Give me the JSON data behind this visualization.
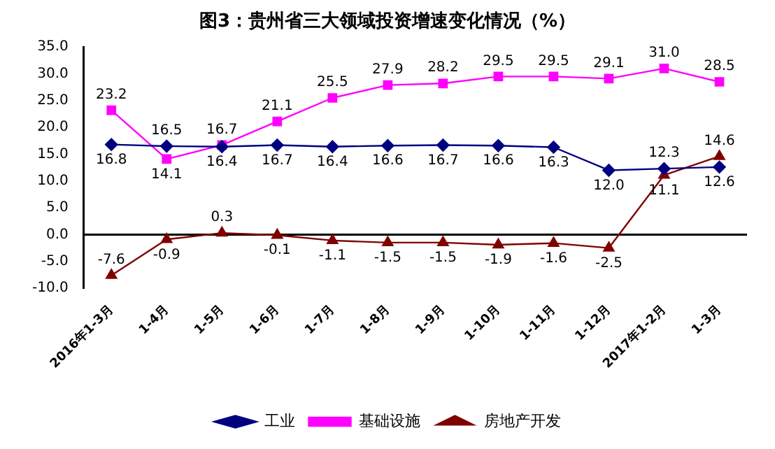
{
  "chart_data": {
    "type": "line",
    "title": "图3：贵州省三大领域投资增速变化情况（%）",
    "categories": [
      "2016年1-3月",
      "1-4月",
      "1-5月",
      "1-6月",
      "1-7月",
      "1-8月",
      "1-9月",
      "1-10月",
      "1-11月",
      "1-12月",
      "2017年1-2月",
      "1-3月"
    ],
    "series": [
      {
        "name": "工业",
        "color": "#000080",
        "marker": "diamond",
        "values": [
          16.8,
          16.5,
          16.4,
          16.7,
          16.4,
          16.6,
          16.7,
          16.6,
          16.3,
          12.0,
          12.3,
          12.6
        ],
        "value_labels": [
          "16.8",
          "16.5",
          "16.4",
          "16.7",
          "16.4",
          "16.6",
          "16.7",
          "16.6",
          "16.3",
          "12.0",
          "12.3",
          "12.6"
        ]
      },
      {
        "name": "基础设施",
        "color": "#ff00ff",
        "marker": "square",
        "values": [
          23.2,
          14.1,
          16.7,
          21.1,
          25.5,
          27.9,
          28.2,
          29.5,
          29.5,
          29.1,
          31.0,
          28.5
        ],
        "value_labels": [
          "23.2",
          "14.1",
          "16.7",
          "21.1",
          "25.5",
          "27.9",
          "28.2",
          "29.5",
          "29.5",
          "29.1",
          "31.0",
          "28.5"
        ]
      },
      {
        "name": "房地产开发",
        "color": "#800000",
        "marker": "triangle",
        "values": [
          -7.6,
          -0.9,
          0.3,
          -0.1,
          -1.1,
          -1.5,
          -1.5,
          -1.9,
          -1.6,
          -2.5,
          11.1,
          14.6
        ],
        "value_labels": [
          "-7.6",
          "-0.9",
          "0.3",
          "-0.1",
          "-1.1",
          "-1.5",
          "-1.5",
          "-1.9",
          "-1.6",
          "-2.5",
          "11.1",
          "14.6"
        ]
      }
    ],
    "ylim": [
      -10,
      35
    ],
    "yticks": [
      {
        "value": -10,
        "label": "-10.0"
      },
      {
        "value": -5,
        "label": "-5.0"
      },
      {
        "value": 0,
        "label": "0.0"
      },
      {
        "value": 5,
        "label": "5.0"
      },
      {
        "value": 10,
        "label": "10.0"
      },
      {
        "value": 15,
        "label": "15.0"
      },
      {
        "value": 20,
        "label": "20.0"
      },
      {
        "value": 25,
        "label": "25.0"
      },
      {
        "value": 30,
        "label": "30.0"
      },
      {
        "value": 35,
        "label": "35.0"
      }
    ],
    "grid": false,
    "legend": "bottom",
    "ref_lines": [
      {
        "axis": "y",
        "value": 0
      }
    ]
  }
}
